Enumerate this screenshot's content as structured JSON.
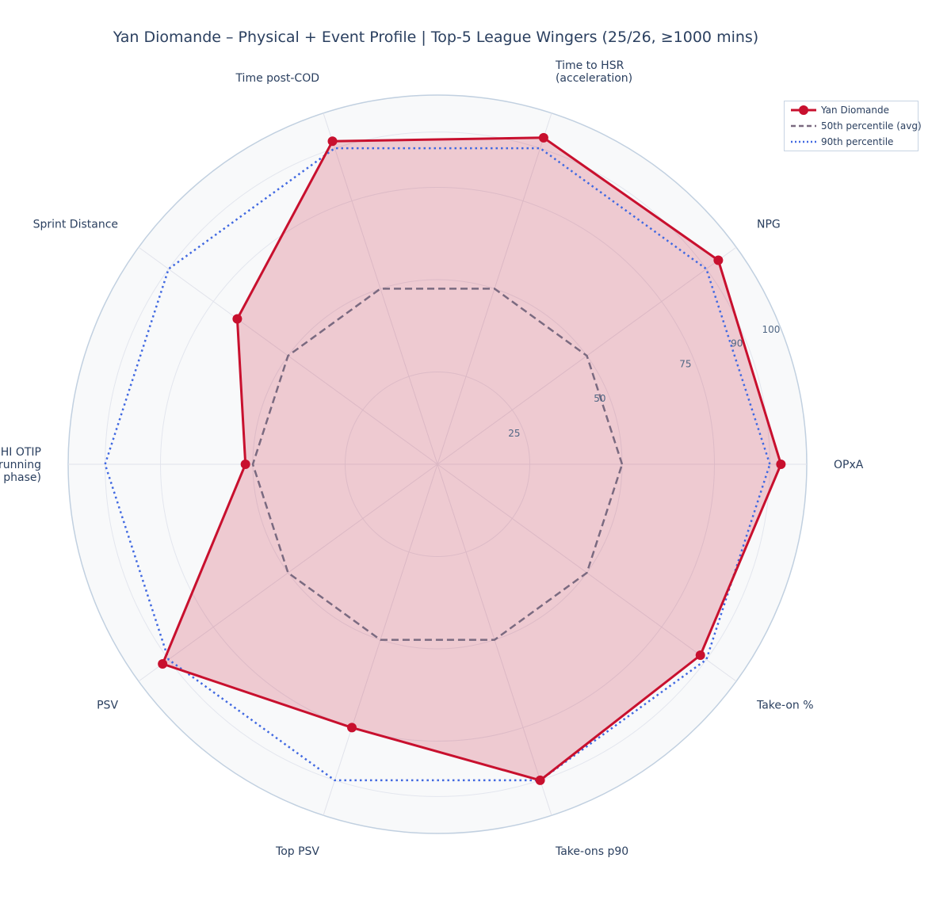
{
  "chart_data": {
    "type": "radar",
    "title": "Yan Diomande – Physical + Event Profile  |  Top-5 League Wingers (25/26, ≥1000 mins)",
    "axes": [
      [
        "OPxA"
      ],
      [
        "NPG"
      ],
      [
        "Time to HSR",
        "(acceleration)"
      ],
      [
        "Time post-COD"
      ],
      [
        "Sprint Distance"
      ],
      [
        "HI OTIP",
        "(HI running",
        "defensive phase)"
      ],
      [
        "PSV"
      ],
      [
        "Top PSV"
      ],
      [
        "Take-ons p90"
      ],
      [
        "Take-on %"
      ]
    ],
    "radial_range": [
      0,
      100
    ],
    "radial_ticks": [
      25,
      50,
      75,
      90,
      100
    ],
    "series": [
      {
        "name": "Yan Diomande",
        "values": [
          93,
          94,
          93,
          92,
          67,
          52,
          92,
          75,
          90,
          88
        ],
        "color": "#c8102e",
        "style": "solid",
        "fill": true
      },
      {
        "name": "50th percentile (avg)",
        "values": [
          50,
          50,
          50,
          50,
          50,
          50,
          50,
          50,
          50,
          50
        ],
        "color": "#7a6a80",
        "style": "dashed",
        "fill": false
      },
      {
        "name": "90th percentile",
        "values": [
          90,
          90,
          90,
          90,
          90,
          90,
          90,
          90,
          90,
          90
        ],
        "color": "#4169e1",
        "style": "dotted",
        "fill": false
      }
    ],
    "legend_position": "top-right",
    "grid": true
  }
}
